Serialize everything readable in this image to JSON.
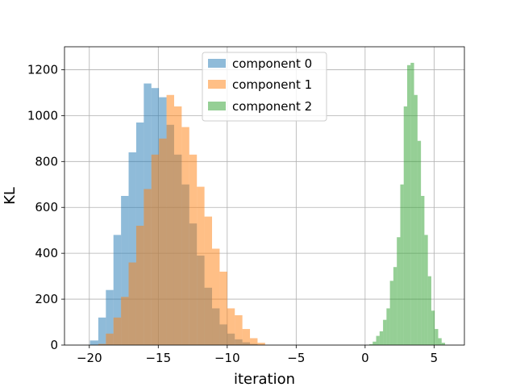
{
  "chart_data": {
    "type": "bar",
    "title": "",
    "xlabel": "iteration",
    "ylabel": "KL",
    "xlim": [
      -21.8,
      7.2
    ],
    "ylim": [
      0,
      1300
    ],
    "grid": true,
    "legend_position": "top-center",
    "x_ticks": [
      -20,
      -15,
      -10,
      -5,
      0,
      5
    ],
    "y_ticks": [
      0,
      200,
      400,
      600,
      800,
      1000,
      1200
    ],
    "series": [
      {
        "name": "component 0",
        "color": "#1f77b4",
        "opacity": 0.5,
        "bins": [
          [
            -19.95,
            -19.35,
            20
          ],
          [
            -19.35,
            -18.8,
            120
          ],
          [
            -18.8,
            -18.25,
            240
          ],
          [
            -18.25,
            -17.7,
            480
          ],
          [
            -17.7,
            -17.15,
            650
          ],
          [
            -17.15,
            -16.6,
            840
          ],
          [
            -16.6,
            -16.05,
            970
          ],
          [
            -16.05,
            -15.5,
            1140
          ],
          [
            -15.5,
            -14.95,
            1120
          ],
          [
            -14.95,
            -14.4,
            1080
          ],
          [
            -14.4,
            -13.85,
            960
          ],
          [
            -13.85,
            -13.3,
            830
          ],
          [
            -13.3,
            -12.75,
            700
          ],
          [
            -12.75,
            -12.2,
            530
          ],
          [
            -12.2,
            -11.65,
            390
          ],
          [
            -11.65,
            -11.1,
            250
          ],
          [
            -11.1,
            -10.55,
            160
          ],
          [
            -10.55,
            -10.0,
            90
          ],
          [
            -10.0,
            -9.45,
            50
          ],
          [
            -9.45,
            -8.9,
            25
          ],
          [
            -8.9,
            -8.35,
            12
          ],
          [
            -8.35,
            -7.8,
            5
          ],
          [
            -7.8,
            -7.25,
            2
          ]
        ]
      },
      {
        "name": "component 1",
        "color": "#ff7f0e",
        "opacity": 0.5,
        "bins": [
          [
            -19.35,
            -18.8,
            5
          ],
          [
            -18.8,
            -18.25,
            50
          ],
          [
            -18.25,
            -17.7,
            120
          ],
          [
            -17.7,
            -17.15,
            210
          ],
          [
            -17.15,
            -16.6,
            360
          ],
          [
            -16.6,
            -16.05,
            520
          ],
          [
            -16.05,
            -15.5,
            680
          ],
          [
            -15.5,
            -14.95,
            830
          ],
          [
            -14.95,
            -14.4,
            900
          ],
          [
            -14.4,
            -13.85,
            1090
          ],
          [
            -13.85,
            -13.3,
            1040
          ],
          [
            -13.3,
            -12.75,
            950
          ],
          [
            -12.75,
            -12.2,
            830
          ],
          [
            -12.2,
            -11.65,
            690
          ],
          [
            -11.65,
            -11.1,
            560
          ],
          [
            -11.1,
            -10.55,
            420
          ],
          [
            -10.55,
            -10.0,
            320
          ],
          [
            -10.0,
            -9.45,
            160
          ],
          [
            -9.45,
            -8.9,
            130
          ],
          [
            -8.9,
            -8.35,
            70
          ],
          [
            -8.35,
            -7.8,
            30
          ],
          [
            -7.8,
            -7.25,
            10
          ]
        ]
      },
      {
        "name": "component 2",
        "color": "#2ca02c",
        "opacity": 0.5,
        "bins": [
          [
            0.3,
            0.55,
            4
          ],
          [
            0.55,
            0.8,
            15
          ],
          [
            0.8,
            1.05,
            40
          ],
          [
            1.05,
            1.3,
            60
          ],
          [
            1.3,
            1.55,
            110
          ],
          [
            1.55,
            1.8,
            160
          ],
          [
            1.8,
            2.05,
            280
          ],
          [
            2.05,
            2.3,
            340
          ],
          [
            2.3,
            2.55,
            470
          ],
          [
            2.55,
            2.8,
            700
          ],
          [
            2.8,
            3.05,
            1040
          ],
          [
            3.05,
            3.3,
            1220
          ],
          [
            3.3,
            3.55,
            1230
          ],
          [
            3.55,
            3.8,
            1090
          ],
          [
            3.8,
            4.05,
            890
          ],
          [
            4.05,
            4.3,
            650
          ],
          [
            4.3,
            4.55,
            480
          ],
          [
            4.55,
            4.8,
            300
          ],
          [
            4.8,
            5.05,
            150
          ],
          [
            5.05,
            5.3,
            70
          ],
          [
            5.3,
            5.55,
            30
          ],
          [
            5.55,
            5.8,
            10
          ]
        ]
      }
    ]
  }
}
